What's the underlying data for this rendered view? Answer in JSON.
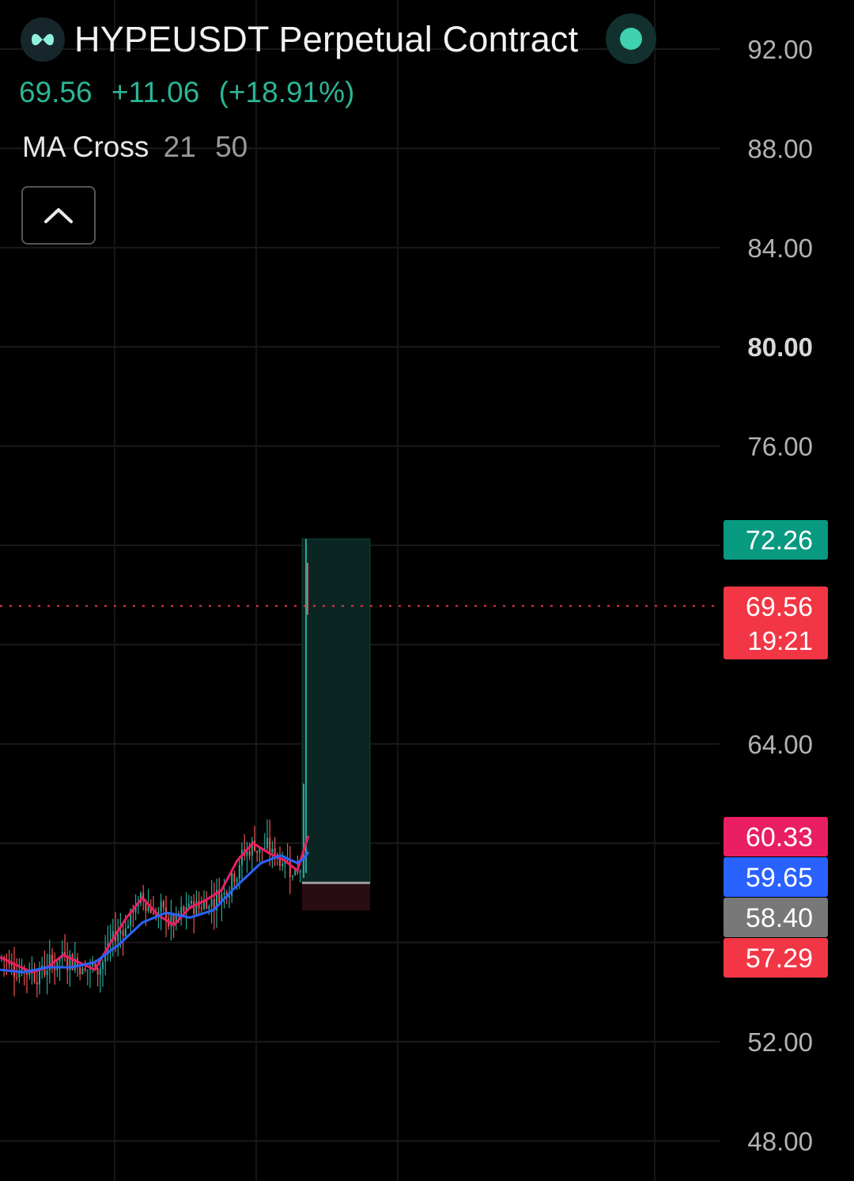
{
  "header": {
    "symbol_title": "HYPEUSDT Perpetual Contract",
    "last_price": "69.56",
    "change_abs": "+11.06",
    "change_pct": "(+18.91%)",
    "indicator_name": "MA Cross",
    "indicator_param_1": "21",
    "indicator_param_2": "50",
    "logo_icon": "hyperliquid-logo-icon",
    "status_icon": "market-open-dot-icon",
    "collapse_icon": "chevron-up-icon"
  },
  "colors": {
    "accent_green": "#2bb596",
    "down_red": "#f23645",
    "ma_fast": "#e91e63",
    "ma_slow": "#2962ff",
    "stop_gray": "#787878"
  },
  "chart_data": {
    "type": "line",
    "y_axis_ticks": [
      "92.00",
      "88.00",
      "84.00",
      "80.00",
      "76.00",
      "64.00",
      "52.00",
      "48.00"
    ],
    "ylim": [
      46.3,
      93.6
    ],
    "current_price": "69.56",
    "countdown": "19:21",
    "price_labels": [
      {
        "value": "72.26",
        "role": "take-profit",
        "color": "#089981"
      },
      {
        "value": "69.56",
        "role": "last-price",
        "color": "#f23645"
      },
      {
        "value": "60.33",
        "role": "ma-21",
        "color": "#e91e63"
      },
      {
        "value": "59.65",
        "role": "ma-50",
        "color": "#2962ff"
      },
      {
        "value": "58.40",
        "role": "entry",
        "color": "#787878"
      },
      {
        "value": "57.29",
        "role": "stop-loss",
        "color": "#f23645"
      }
    ],
    "position_tool": {
      "entry": 58.4,
      "target": 72.26,
      "stop": 57.29
    },
    "series": [
      {
        "key": "ma21",
        "color": "#e91e63",
        "points": [
          [
            0,
            55.4
          ],
          [
            20,
            55.1
          ],
          [
            40,
            54.8
          ],
          [
            60,
            55.0
          ],
          [
            80,
            55.5
          ],
          [
            100,
            55.2
          ],
          [
            120,
            54.9
          ],
          [
            140,
            56.0
          ],
          [
            160,
            57.0
          ],
          [
            180,
            57.8
          ],
          [
            200,
            57.1
          ],
          [
            220,
            56.7
          ],
          [
            240,
            57.4
          ],
          [
            260,
            57.7
          ],
          [
            280,
            58.1
          ],
          [
            300,
            59.3
          ],
          [
            320,
            60.0
          ],
          [
            340,
            59.6
          ],
          [
            360,
            59.3
          ],
          [
            376,
            58.9
          ],
          [
            385,
            59.8
          ],
          [
            390,
            60.3
          ]
        ]
      },
      {
        "key": "ma50",
        "color": "#2962ff",
        "points": [
          [
            0,
            54.9
          ],
          [
            30,
            54.8
          ],
          [
            60,
            55.0
          ],
          [
            90,
            55.0
          ],
          [
            120,
            55.2
          ],
          [
            150,
            55.9
          ],
          [
            180,
            56.8
          ],
          [
            210,
            57.2
          ],
          [
            240,
            57.0
          ],
          [
            270,
            57.3
          ],
          [
            300,
            58.3
          ],
          [
            330,
            59.2
          ],
          [
            355,
            59.5
          ],
          [
            376,
            59.2
          ],
          [
            385,
            59.4
          ],
          [
            390,
            59.65
          ]
        ]
      }
    ]
  }
}
